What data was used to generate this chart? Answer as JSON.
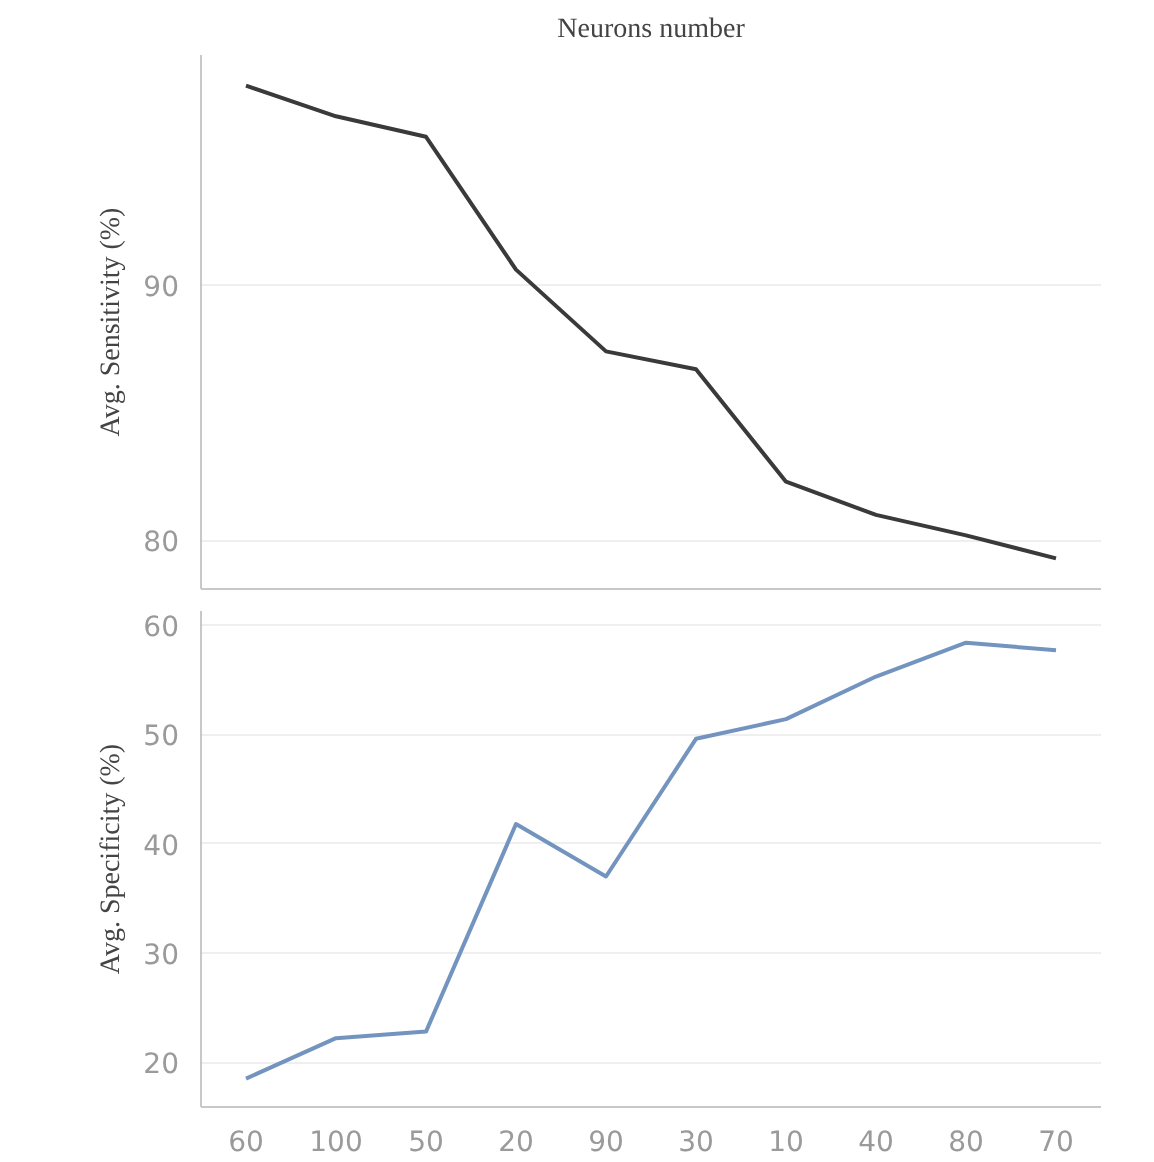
{
  "chart_data": [
    {
      "type": "line",
      "title": "Neurons number",
      "ylabel": "Avg. Sensitivity (%)",
      "categories": [
        "60",
        "100",
        "50",
        "20",
        "90",
        "30",
        "10",
        "40",
        "80",
        "70"
      ],
      "series": [
        {
          "color": "#3a3a3a",
          "values": [
            97.8,
            96.6,
            95.8,
            90.6,
            87.4,
            86.7,
            82.3,
            81.0,
            80.2,
            79.3
          ]
        }
      ],
      "ylim": [
        78.1,
        99.0
      ],
      "yticks": [
        80,
        90
      ],
      "grid": "y",
      "tick_labels": "y"
    },
    {
      "type": "line",
      "ylabel": "Avg. Specificity (%)",
      "categories": [
        "60",
        "100",
        "50",
        "20",
        "90",
        "30",
        "10",
        "40",
        "80",
        "70"
      ],
      "series": [
        {
          "color": "#7394bf",
          "values": [
            18.5,
            22.2,
            22.8,
            41.8,
            37.0,
            49.6,
            51.4,
            55.3,
            58.4,
            57.7
          ]
        }
      ],
      "ylim": [
        15.9,
        61.3
      ],
      "yticks": [
        20,
        30,
        40,
        50,
        60
      ],
      "grid": "y"
    }
  ]
}
